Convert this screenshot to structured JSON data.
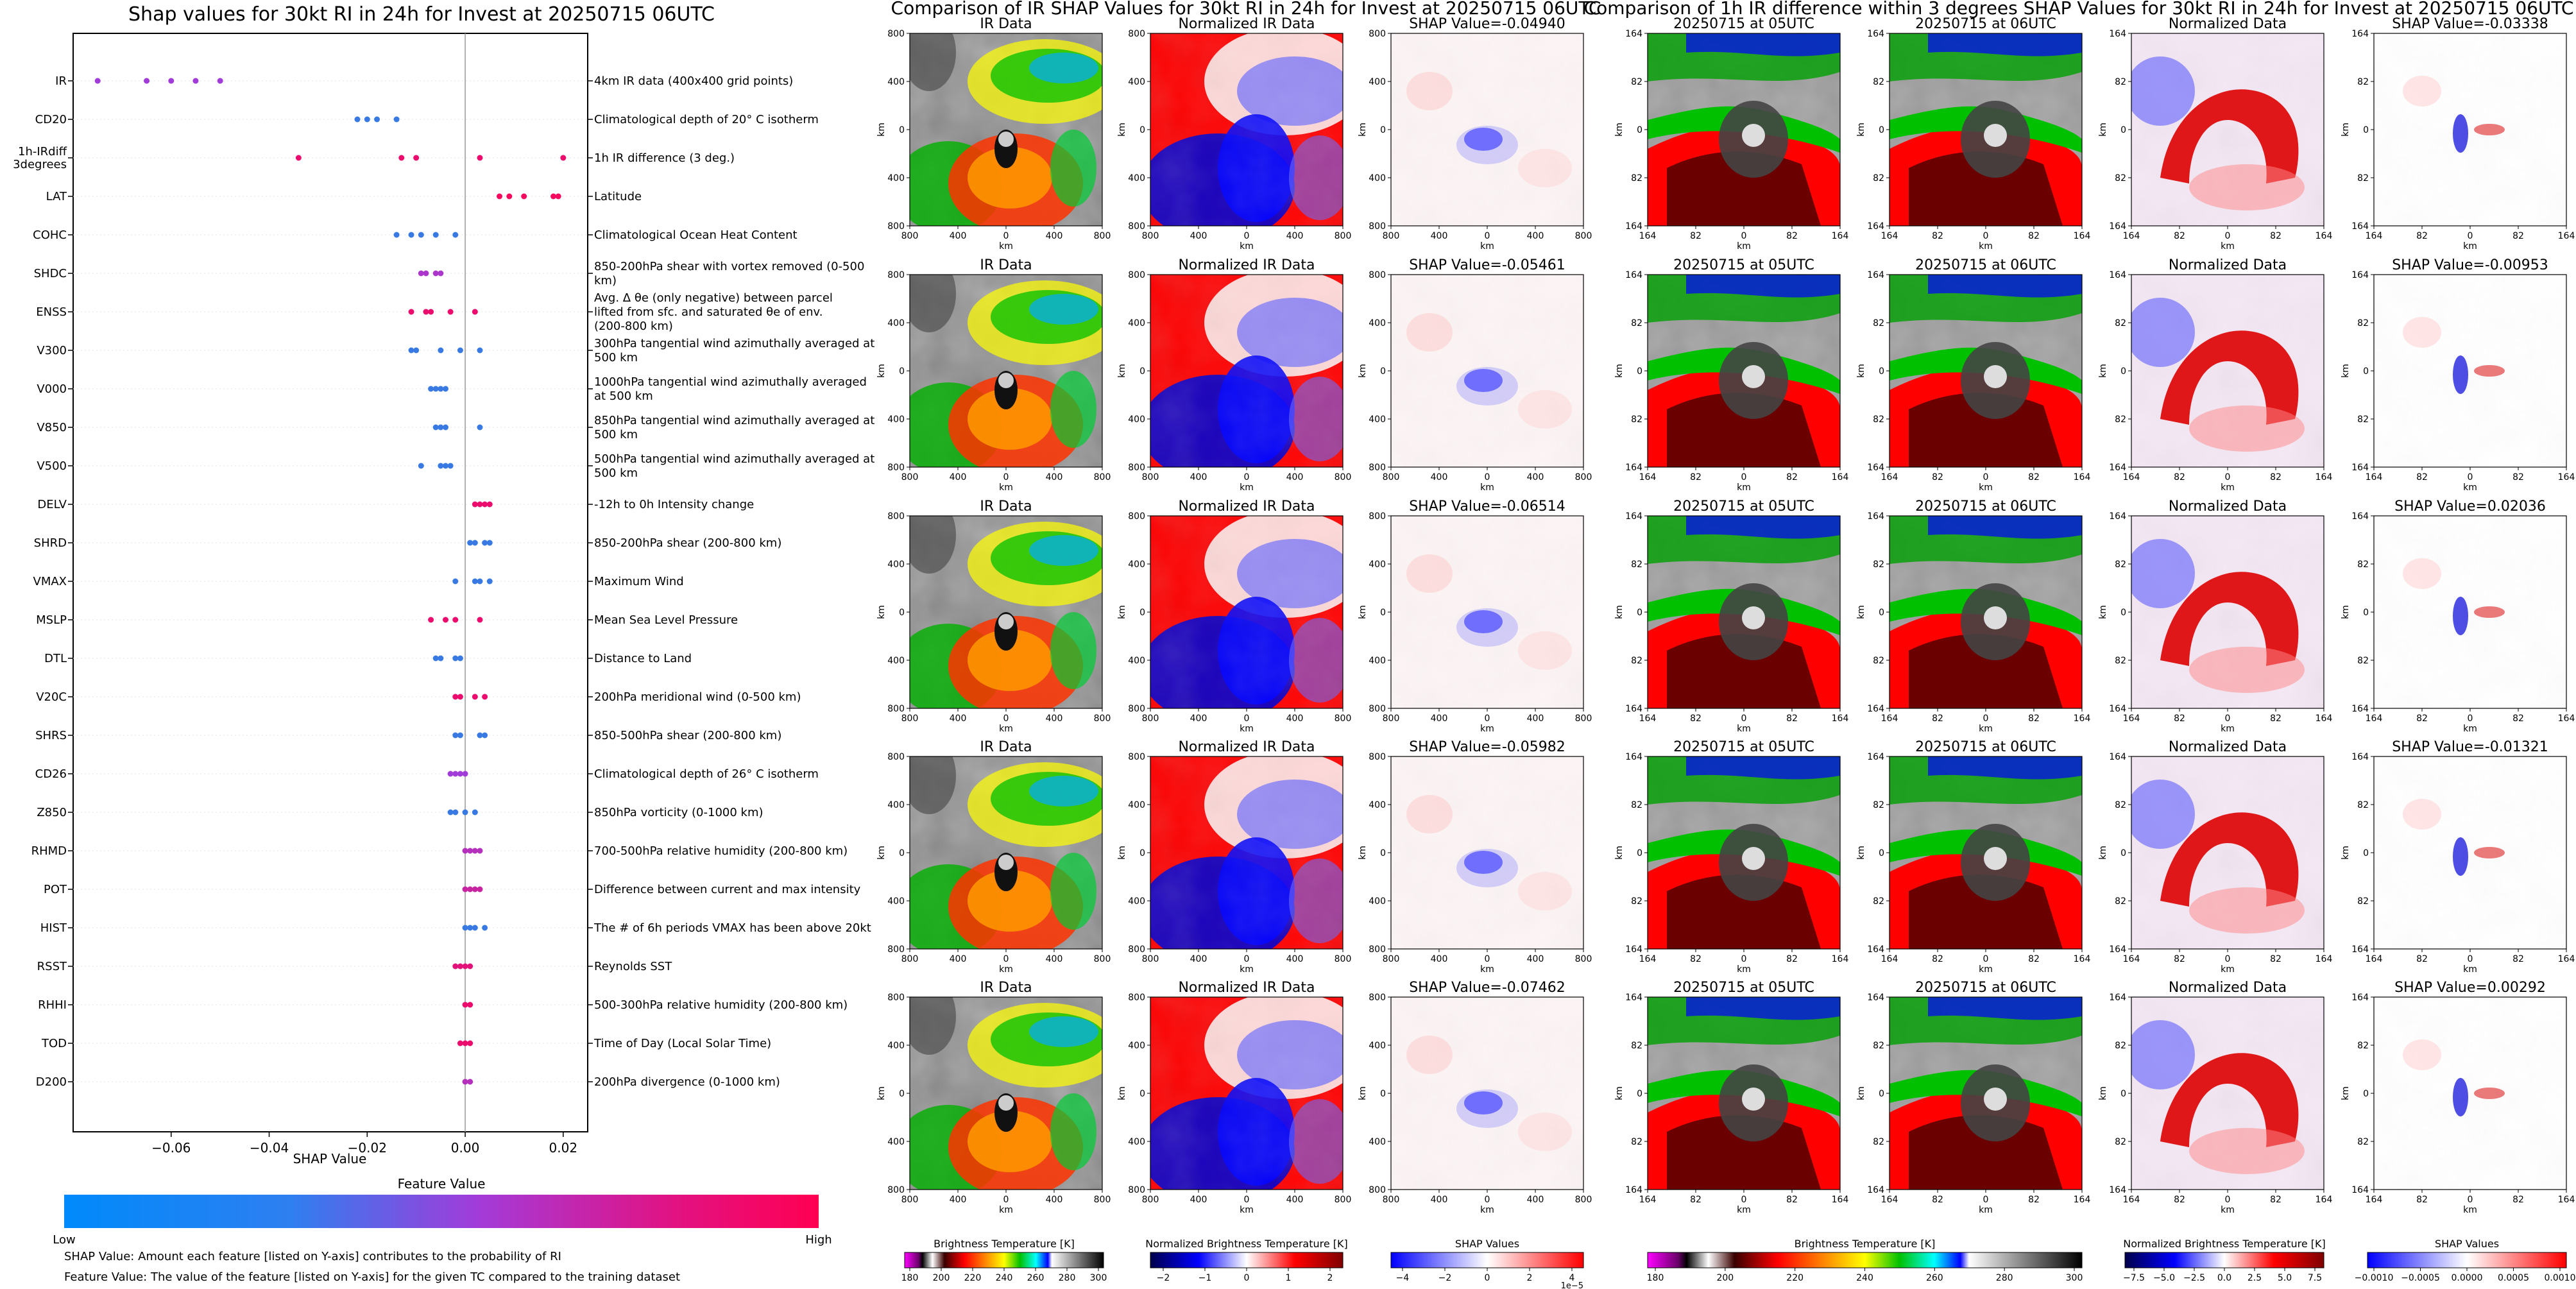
{
  "shap": {
    "title": "Shap values for 30kt RI in 24h for Invest at 20250715 06UTC",
    "xlabel": "SHAP Value",
    "colorbar_label": "Feature Value",
    "colorbar_low": "Low",
    "colorbar_high": "High",
    "footnote1": "SHAP Value: Amount each feature [listed on Y-axis] contributes to the probability of RI",
    "footnote2": "Feature Value: The value of the feature [listed on Y-axis] for the given TC compared to the training dataset",
    "colors": {
      "low": "#1e88e5",
      "mid": "#a23cd8",
      "high": "#ff0052"
    }
  },
  "ir": {
    "title": "Comparison of IR SHAP Values for 30kt RI in 24h for Invest at 20250715 06UTC",
    "col_titles": [
      "IR Data",
      "Normalized IR Data"
    ],
    "shap_titles": [
      "SHAP Value=-0.04940",
      "SHAP Value=-0.05461",
      "SHAP Value=-0.06514",
      "SHAP Value=-0.05982",
      "SHAP Value=-0.07462"
    ],
    "ticks": [
      "800",
      "400",
      "0",
      "400",
      "800"
    ],
    "axis_label": "km",
    "cbars": [
      {
        "label": "Brightness Temperature [K]",
        "ticks": [
          "180",
          "200",
          "220",
          "240",
          "260",
          "280",
          "300"
        ]
      },
      {
        "label": "Normalized Brightness Temperature [K]",
        "ticks": [
          "−2",
          "−1",
          "0",
          "1",
          "2"
        ]
      },
      {
        "label": "SHAP Values",
        "ticks": [
          "−4",
          "−2",
          "0",
          "2",
          "4"
        ],
        "exponent": "1e−5"
      }
    ]
  },
  "diff": {
    "title": "Comparison of 1h IR difference within 3 degrees SHAP Values for 30kt RI in 24h for Invest at 20250715 06UTC",
    "col_titles": [
      "20250715 at 05UTC",
      "20250715 at 06UTC",
      "Normalized Data"
    ],
    "shap_titles": [
      "SHAP Value=-0.03338",
      "SHAP Value=-0.00953",
      "SHAP Value=0.02036",
      "SHAP Value=-0.01321",
      "SHAP Value=0.00292"
    ],
    "ticks": [
      "164",
      "82",
      "0",
      "82",
      "164"
    ],
    "axis_label": "km",
    "cbars": [
      {
        "label": "Brightness Temperature [K]",
        "ticks": [
          "180",
          "200",
          "220",
          "240",
          "260",
          "280",
          "300"
        ]
      },
      {
        "label": "Normalized Brightness Temperature [K]",
        "ticks": [
          "−7.5",
          "−5.0",
          "−2.5",
          "0.0",
          "2.5",
          "5.0",
          "7.5"
        ]
      },
      {
        "label": "SHAP Values",
        "ticks": [
          "−0.0010",
          "−0.0005",
          "0.0000",
          "0.0005",
          "0.0010"
        ]
      }
    ]
  },
  "chart_data": {
    "type": "scatter",
    "title": "Shap values for 30kt RI in 24h for Invest at 20250715 06UTC",
    "xlabel": "SHAP Value",
    "ylabel": "",
    "xlim": [
      -0.08,
      0.025
    ],
    "xticks": [
      -0.06,
      -0.04,
      -0.02,
      0.0,
      0.02
    ],
    "xtick_labels": [
      "−0.06",
      "−0.04",
      "−0.02",
      "0.00",
      "0.02"
    ],
    "features": [
      {
        "name": "IR",
        "description": "4km IR data (400x400 grid points)",
        "points": [
          [
            -0.075,
            0.5
          ],
          [
            -0.065,
            0.5
          ],
          [
            -0.06,
            0.5
          ],
          [
            -0.055,
            0.5
          ],
          [
            -0.05,
            0.5
          ]
        ]
      },
      {
        "name": "CD20",
        "description": "Climatological depth of 20° C isotherm",
        "points": [
          [
            -0.022,
            0.1
          ],
          [
            -0.02,
            0.1
          ],
          [
            -0.018,
            0.1
          ],
          [
            -0.014,
            0.1
          ]
        ]
      },
      {
        "name": "1h-IRdiff 3degrees",
        "description": "1h IR difference (3 deg.)",
        "points": [
          [
            -0.034,
            0.9
          ],
          [
            -0.013,
            0.9
          ],
          [
            -0.01,
            0.9
          ],
          [
            0.003,
            0.9
          ],
          [
            0.02,
            0.9
          ]
        ]
      },
      {
        "name": "LAT",
        "description": "Latitude",
        "points": [
          [
            0.007,
            0.95
          ],
          [
            0.009,
            0.95
          ],
          [
            0.012,
            0.95
          ],
          [
            0.018,
            0.95
          ],
          [
            0.019,
            0.95
          ]
        ]
      },
      {
        "name": "COHC",
        "description": "Climatological Ocean Heat Content",
        "points": [
          [
            -0.014,
            0.1
          ],
          [
            -0.011,
            0.1
          ],
          [
            -0.009,
            0.1
          ],
          [
            -0.006,
            0.1
          ],
          [
            -0.002,
            0.1
          ]
        ]
      },
      {
        "name": "SHDC",
        "description": "850-200hPa shear with vortex removed (0-500 km)",
        "points": [
          [
            -0.009,
            0.55
          ],
          [
            -0.008,
            0.55
          ],
          [
            -0.006,
            0.55
          ],
          [
            -0.005,
            0.55
          ]
        ]
      },
      {
        "name": "ENSS",
        "description": "Avg. Δ θe (only negative) between parcel lifted from sfc. and saturated θe of env. (200-800 km)",
        "points": [
          [
            -0.011,
            0.9
          ],
          [
            -0.008,
            0.9
          ],
          [
            -0.007,
            0.9
          ],
          [
            -0.003,
            0.9
          ],
          [
            0.002,
            0.9
          ]
        ]
      },
      {
        "name": "V300",
        "description": "300hPa tangential wind azimuthally averaged at 500 km",
        "points": [
          [
            -0.011,
            0.1
          ],
          [
            -0.01,
            0.1
          ],
          [
            -0.005,
            0.1
          ],
          [
            -0.001,
            0.1
          ],
          [
            0.003,
            0.1
          ]
        ]
      },
      {
        "name": "V000",
        "description": "1000hPa tangential wind azimuthally averaged at 500 km",
        "points": [
          [
            -0.007,
            0.1
          ],
          [
            -0.006,
            0.1
          ],
          [
            -0.005,
            0.1
          ],
          [
            -0.004,
            0.1
          ]
        ]
      },
      {
        "name": "V850",
        "description": "850hPa tangential wind azimuthally averaged at 500 km",
        "points": [
          [
            -0.006,
            0.1
          ],
          [
            -0.005,
            0.1
          ],
          [
            -0.004,
            0.1
          ],
          [
            0.003,
            0.1
          ]
        ]
      },
      {
        "name": "V500",
        "description": "500hPa tangential wind azimuthally averaged at 500 km",
        "points": [
          [
            -0.009,
            0.1
          ],
          [
            -0.005,
            0.1
          ],
          [
            -0.004,
            0.1
          ],
          [
            -0.003,
            0.1
          ]
        ]
      },
      {
        "name": "DELV",
        "description": "-12h to 0h Intensity change",
        "points": [
          [
            0.002,
            0.9
          ],
          [
            0.003,
            0.9
          ],
          [
            0.004,
            0.9
          ],
          [
            0.005,
            0.9
          ]
        ]
      },
      {
        "name": "SHRD",
        "description": "850-200hPa shear (200-800 km)",
        "points": [
          [
            0.001,
            0.1
          ],
          [
            0.002,
            0.1
          ],
          [
            0.004,
            0.1
          ],
          [
            0.005,
            0.1
          ]
        ]
      },
      {
        "name": "VMAX",
        "description": "Maximum Wind",
        "points": [
          [
            -0.002,
            0.1
          ],
          [
            0.002,
            0.1
          ],
          [
            0.003,
            0.1
          ],
          [
            0.005,
            0.1
          ]
        ]
      },
      {
        "name": "MSLP",
        "description": "Mean Sea Level Pressure",
        "points": [
          [
            -0.007,
            0.9
          ],
          [
            -0.004,
            0.9
          ],
          [
            -0.002,
            0.9
          ],
          [
            0.003,
            0.9
          ]
        ]
      },
      {
        "name": "DTL",
        "description": "Distance to Land",
        "points": [
          [
            -0.006,
            0.1
          ],
          [
            -0.005,
            0.1
          ],
          [
            -0.002,
            0.1
          ],
          [
            -0.001,
            0.1
          ]
        ]
      },
      {
        "name": "V20C",
        "description": "200hPa meridional wind (0-500 km)",
        "points": [
          [
            -0.002,
            0.9
          ],
          [
            -0.001,
            0.9
          ],
          [
            0.002,
            0.9
          ],
          [
            0.004,
            0.9
          ]
        ]
      },
      {
        "name": "SHRS",
        "description": "850-500hPa shear (200-800 km)",
        "points": [
          [
            -0.002,
            0.1
          ],
          [
            -0.001,
            0.1
          ],
          [
            0.003,
            0.1
          ],
          [
            0.004,
            0.1
          ]
        ]
      },
      {
        "name": "CD26",
        "description": "Climatological depth of 26° C isotherm",
        "points": [
          [
            -0.003,
            0.5
          ],
          [
            -0.002,
            0.5
          ],
          [
            -0.001,
            0.5
          ],
          [
            0.0,
            0.5
          ]
        ]
      },
      {
        "name": "Z850",
        "description": "850hPa vorticity (0-1000 km)",
        "points": [
          [
            -0.003,
            0.1
          ],
          [
            -0.002,
            0.1
          ],
          [
            0.0,
            0.1
          ],
          [
            0.002,
            0.1
          ]
        ]
      },
      {
        "name": "RHMD",
        "description": "700-500hPa relative humidity (200-800 km)",
        "points": [
          [
            0.0,
            0.6
          ],
          [
            0.001,
            0.6
          ],
          [
            0.002,
            0.6
          ],
          [
            0.003,
            0.6
          ]
        ]
      },
      {
        "name": "POT",
        "description": "Difference between current and max intensity",
        "points": [
          [
            0.0,
            0.7
          ],
          [
            0.001,
            0.7
          ],
          [
            0.002,
            0.7
          ],
          [
            0.003,
            0.7
          ]
        ]
      },
      {
        "name": "HIST",
        "description": "The # of 6h periods VMAX has been above 20kt",
        "points": [
          [
            0.0,
            0.1
          ],
          [
            0.001,
            0.1
          ],
          [
            0.002,
            0.1
          ],
          [
            0.004,
            0.1
          ]
        ]
      },
      {
        "name": "RSST",
        "description": "Reynolds SST",
        "points": [
          [
            -0.002,
            0.85
          ],
          [
            -0.001,
            0.85
          ],
          [
            0.0,
            0.85
          ],
          [
            0.001,
            0.85
          ]
        ]
      },
      {
        "name": "RHHI",
        "description": "500-300hPa relative humidity (200-800 km)",
        "points": [
          [
            0.0,
            0.9
          ],
          [
            0.001,
            0.9
          ]
        ]
      },
      {
        "name": "TOD",
        "description": "Time of Day (Local Solar Time)",
        "points": [
          [
            -0.001,
            0.9
          ],
          [
            0.0,
            0.9
          ],
          [
            0.001,
            0.9
          ]
        ]
      },
      {
        "name": "D200",
        "description": "200hPa divergence (0-1000 km)",
        "points": [
          [
            0.0,
            0.6
          ],
          [
            0.001,
            0.6
          ]
        ]
      }
    ]
  }
}
